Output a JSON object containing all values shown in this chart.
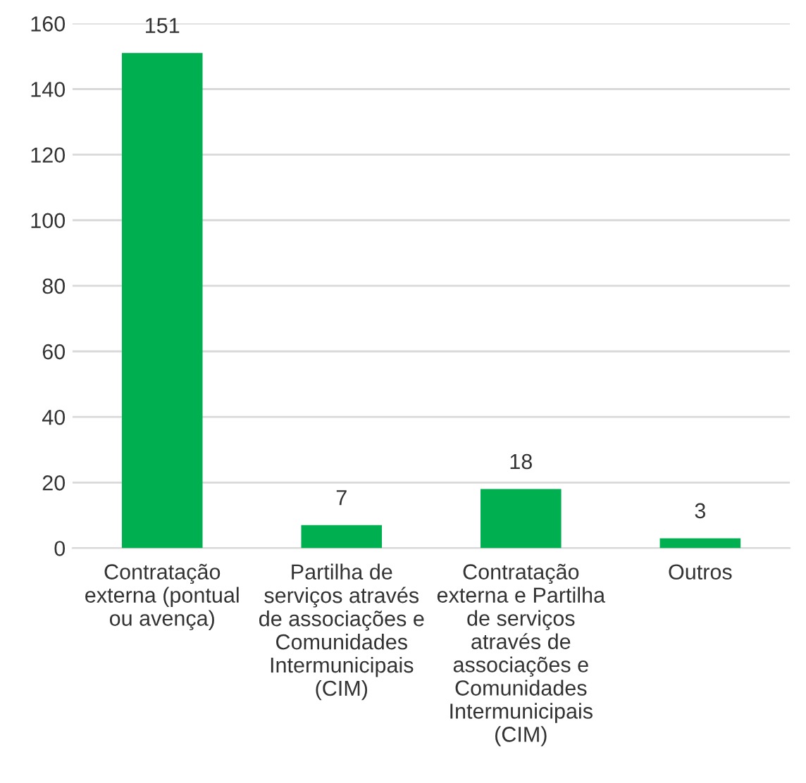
{
  "chart_data": {
    "type": "bar",
    "categories": [
      "Contratação\nexterna (pontual\nou avença)",
      "Partilha de\nserviços através\nde associações e\nComunidades\nIntermunicipais\n(CIM)",
      "Contratação\nexterna e Partilha\nde serviços\natravés de\nassociações e\nComunidades\nIntermunicipais\n(CIM)",
      "Outros"
    ],
    "values": [
      151,
      7,
      18,
      3
    ],
    "color": "#00b050",
    "ylim": [
      0,
      160
    ],
    "yticks": [
      0,
      20,
      40,
      60,
      80,
      100,
      120,
      140,
      160
    ],
    "grid": "y",
    "data_labels": true
  }
}
